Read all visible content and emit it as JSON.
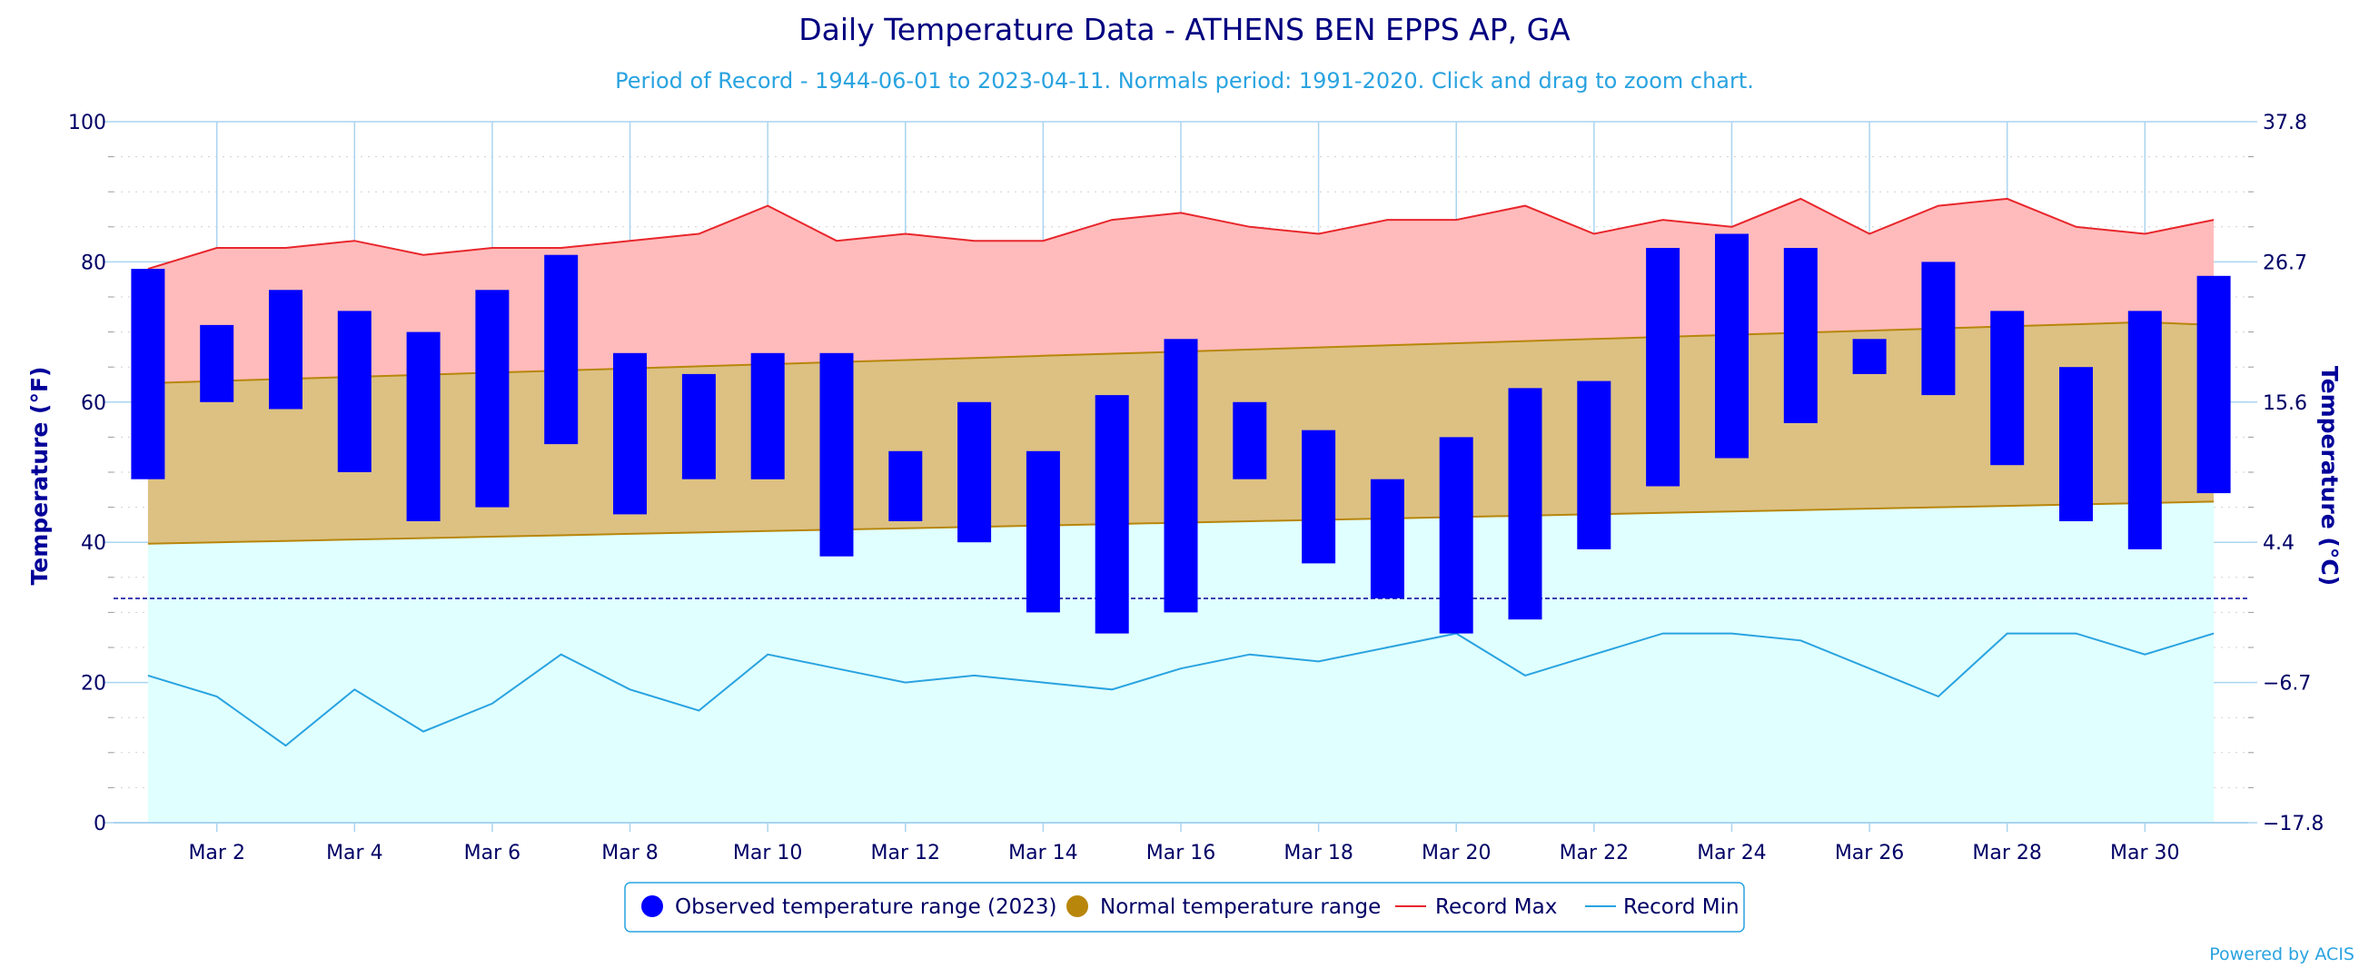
{
  "chart_data": {
    "type": "bar",
    "title": "Daily Temperature Data - ATHENS BEN EPPS AP, GA",
    "subtitle": "Period of Record - 1944-06-01 to 2023-04-11. Normals period: 1991-2020. Click and drag to zoom chart.",
    "ylabel": "Temperature (°F)",
    "ylabel_right": "Temperature (°C)",
    "ylim": [
      0,
      100
    ],
    "yticks": [
      0,
      20,
      40,
      60,
      80,
      100
    ],
    "yticks_right": [
      "−17.8",
      "−6.7",
      "4.4",
      "15.6",
      "26.7",
      "37.8"
    ],
    "xlim": [
      0.5,
      31.5
    ],
    "xticks": [
      {
        "day": 2,
        "label": "Mar 2"
      },
      {
        "day": 4,
        "label": "Mar 4"
      },
      {
        "day": 6,
        "label": "Mar 6"
      },
      {
        "day": 8,
        "label": "Mar 8"
      },
      {
        "day": 10,
        "label": "Mar 10"
      },
      {
        "day": 12,
        "label": "Mar 12"
      },
      {
        "day": 14,
        "label": "Mar 14"
      },
      {
        "day": 16,
        "label": "Mar 16"
      },
      {
        "day": 18,
        "label": "Mar 18"
      },
      {
        "day": 20,
        "label": "Mar 20"
      },
      {
        "day": 22,
        "label": "Mar 22"
      },
      {
        "day": 24,
        "label": "Mar 24"
      },
      {
        "day": 26,
        "label": "Mar 26"
      },
      {
        "day": 28,
        "label": "Mar 28"
      },
      {
        "day": 30,
        "label": "Mar 30"
      }
    ],
    "days": [
      1,
      2,
      3,
      4,
      5,
      6,
      7,
      8,
      9,
      10,
      11,
      12,
      13,
      14,
      15,
      16,
      17,
      18,
      19,
      20,
      21,
      22,
      23,
      24,
      25,
      26,
      27,
      28,
      29,
      30,
      31
    ],
    "freezing_line": 32,
    "series": [
      {
        "name": "Observed temperature range (2023)",
        "color": "#0000ff",
        "low": [
          49,
          60,
          59,
          50,
          43,
          45,
          54,
          44,
          49,
          49,
          38,
          43,
          40,
          30,
          27,
          30,
          49,
          37,
          32,
          27,
          29,
          39,
          48,
          52,
          57,
          64,
          61,
          51,
          43,
          39,
          47
        ],
        "high": [
          79,
          71,
          76,
          73,
          70,
          76,
          81,
          67,
          64,
          67,
          67,
          53,
          60,
          53,
          61,
          69,
          60,
          56,
          49,
          55,
          62,
          63,
          82,
          84,
          82,
          69,
          80,
          73,
          65,
          73,
          78
        ]
      },
      {
        "name": "Normal temperature range",
        "color": "#b8860b",
        "low": [
          39.8,
          40.0,
          40.2,
          40.4,
          40.6,
          40.8,
          41.0,
          41.2,
          41.4,
          41.6,
          41.8,
          42.0,
          42.2,
          42.4,
          42.6,
          42.8,
          43.0,
          43.2,
          43.4,
          43.6,
          43.8,
          44.0,
          44.2,
          44.4,
          44.6,
          44.8,
          45.0,
          45.2,
          45.4,
          45.6,
          45.8
        ],
        "high": [
          62.7,
          63.0,
          63.3,
          63.6,
          63.9,
          64.2,
          64.5,
          64.8,
          65.1,
          65.4,
          65.7,
          66.0,
          66.3,
          66.6,
          66.9,
          67.2,
          67.5,
          67.8,
          68.1,
          68.4,
          68.7,
          69.0,
          69.3,
          69.6,
          69.9,
          70.2,
          70.5,
          70.8,
          71.1,
          71.4,
          71.0
        ]
      },
      {
        "name": "Record Max",
        "color": "#e8262c",
        "values": [
          79,
          82,
          82,
          83,
          81,
          82,
          82,
          83,
          84,
          88,
          83,
          84,
          83,
          83,
          86,
          87,
          85,
          84,
          86,
          86,
          88,
          84,
          86,
          85,
          89,
          84,
          88,
          89,
          85,
          84,
          86
        ]
      },
      {
        "name": "Record Min",
        "color": "#29a3e0",
        "values": [
          21,
          18,
          11,
          19,
          13,
          17,
          24,
          19,
          16,
          24,
          22,
          20,
          21,
          20,
          19,
          22,
          24,
          23,
          25,
          27,
          21,
          24,
          27,
          27,
          26,
          22,
          18,
          27,
          27,
          24,
          27
        ]
      }
    ],
    "colors": {
      "record_band": "#ffbbbb",
      "normal_band": "#dcc183",
      "below_normal": "#e0ffff",
      "gridline": "#aad4ef",
      "freezing_line": "#000099"
    },
    "legend_position": "bottom-center",
    "credit": "Powered by ACIS"
  }
}
